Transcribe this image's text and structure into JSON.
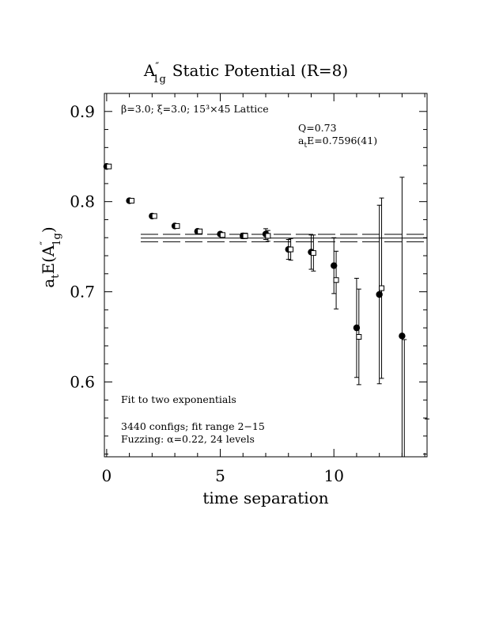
{
  "chart_data": {
    "type": "scatter",
    "title_main": "A",
    "title_sup": "″",
    "title_sub": "1g",
    "title_rest": "Static Potential (R=8)",
    "xlabel": "time separation",
    "ylabel": "a",
    "ylabel_sub1": "t",
    "ylabel_mid": "E(A",
    "ylabel_sup": "″",
    "ylabel_sub2": "1g",
    "ylabel_end": ")",
    "xlim": [
      -0.1,
      14.1
    ],
    "ylim": [
      0.517,
      0.92
    ],
    "x_ticks": [
      0,
      5,
      10
    ],
    "x_tick_labels": [
      "0",
      "5",
      "10"
    ],
    "y_ticks": [
      0.6,
      0.7,
      0.8,
      0.9
    ],
    "y_tick_labels": [
      "0.6",
      "0.7",
      "0.8",
      "0.9"
    ],
    "grid": false,
    "annotations": {
      "lattice": "β=3.0; ξ=3.0; 15³×45 Lattice",
      "q_value": "Q=0.73",
      "energy_a": "a",
      "energy_sub": "t",
      "energy_rest": "E=0.7596(41)",
      "fit_type": "Fit to two exponentials",
      "configs": "3440 configs; fit range 2−15",
      "fuzzing": "Fuzzing: α=0.22, 24 levels"
    },
    "fit": {
      "x_range": [
        1.5,
        14.1
      ],
      "center": 0.7596,
      "upper": 0.7637,
      "lower": 0.7555
    },
    "series": [
      {
        "marker": "filled-circle",
        "points": [
          {
            "x": 0,
            "y": 0.839,
            "err": 0.0015
          },
          {
            "x": 1,
            "y": 0.801,
            "err": 0.0015
          },
          {
            "x": 2,
            "y": 0.784,
            "err": 0.0015
          },
          {
            "x": 3,
            "y": 0.773,
            "err": 0.002
          },
          {
            "x": 4,
            "y": 0.767,
            "err": 0.002
          },
          {
            "x": 5,
            "y": 0.764,
            "err": 0.002
          },
          {
            "x": 6,
            "y": 0.762,
            "err": 0.003
          },
          {
            "x": 7,
            "y": 0.764,
            "err": 0.006
          },
          {
            "x": 8,
            "y": 0.747,
            "err": 0.011
          },
          {
            "x": 9,
            "y": 0.744,
            "err": 0.019
          },
          {
            "x": 10,
            "y": 0.729,
            "err": 0.031
          },
          {
            "x": 11,
            "y": 0.66,
            "err": 0.055
          },
          {
            "x": 12,
            "y": 0.697,
            "err": 0.099
          },
          {
            "x": 13,
            "y": 0.651,
            "err": 0.176
          }
        ]
      },
      {
        "marker": "open-square",
        "points": [
          {
            "x": 0.1,
            "y": 0.839,
            "err": 0.0015
          },
          {
            "x": 1.1,
            "y": 0.801,
            "err": 0.0015
          },
          {
            "x": 2.1,
            "y": 0.784,
            "err": 0.0015
          },
          {
            "x": 3.1,
            "y": 0.773,
            "err": 0.002
          },
          {
            "x": 4.1,
            "y": 0.767,
            "err": 0.002
          },
          {
            "x": 5.1,
            "y": 0.763,
            "err": 0.002
          },
          {
            "x": 6.1,
            "y": 0.762,
            "err": 0.003
          },
          {
            "x": 7.1,
            "y": 0.762,
            "err": 0.006
          },
          {
            "x": 8.1,
            "y": 0.747,
            "err": 0.012
          },
          {
            "x": 9.1,
            "y": 0.743,
            "err": 0.02
          },
          {
            "x": 10.1,
            "y": 0.713,
            "err": 0.032
          },
          {
            "x": 11.1,
            "y": 0.65,
            "err": 0.053
          },
          {
            "x": 12.1,
            "y": 0.704,
            "err": 0.1
          },
          {
            "x": 13.1,
            "y": 0.517,
            "err": 0.13
          },
          {
            "x": 14.1,
            "y": 0.517,
            "err": 0.042
          }
        ]
      }
    ]
  }
}
